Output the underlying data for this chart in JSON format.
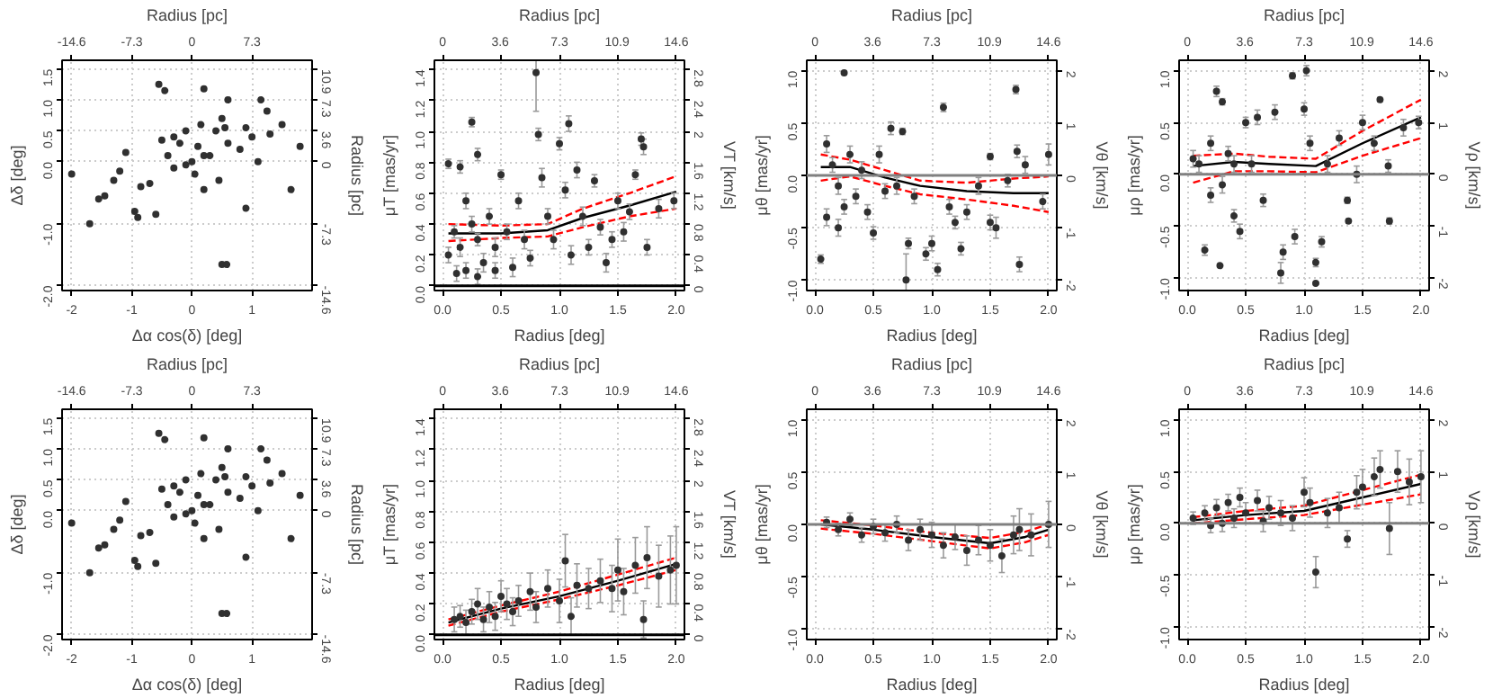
{
  "chart_data": [
    {
      "type": "scatter",
      "xlabel": "Δα cos(δ) [deg]",
      "ylabel": "Δδ [deg]",
      "x2label": "Radius [pc]",
      "y2label": "Radius [pc]",
      "xlim": [
        -2.16,
        2.0
      ],
      "ylim": [
        -2.08,
        1.64
      ],
      "x2lim": [
        -15.77,
        14.6
      ],
      "y2lim": [
        -15.18,
        11.97
      ],
      "xticks": [
        -2,
        -1,
        0,
        1
      ],
      "yticks": [
        {
          "value": -2,
          "label": "-2.0"
        },
        {
          "value": -1,
          "label": "-1.0"
        },
        {
          "value": 0,
          "label": "0.0"
        },
        0.5,
        {
          "value": 1,
          "label": "1.0"
        },
        1.5
      ],
      "x2ticks": [
        -14.6,
        -7.3,
        0,
        7.3
      ],
      "y2ticks": [
        -14.6,
        -7.3,
        0,
        3.6,
        7.3,
        10.9
      ],
      "grid": true,
      "series": [
        {
          "color": "#303030",
          "marker": "circle",
          "x": [
            -2.0,
            -1.7,
            -1.55,
            -1.45,
            -1.3,
            -1.2,
            -1.1,
            -0.95,
            -0.9,
            -0.85,
            -0.7,
            -0.6,
            -0.55,
            -0.45,
            -0.5,
            -0.4,
            -0.3,
            -0.3,
            -0.2,
            -0.1,
            -0.1,
            0.0,
            0.05,
            0.1,
            0.15,
            0.2,
            0.2,
            0.2,
            0.3,
            0.4,
            0.45,
            0.5,
            0.55,
            0.6,
            0.6,
            0.8,
            0.9,
            0.9,
            1.0,
            1.1,
            1.15,
            1.25,
            1.3,
            1.5,
            1.65,
            1.8,
            0.5,
            0.58
          ],
          "values": [
            -0.2,
            -1.0,
            -0.6,
            -0.55,
            -0.3,
            -0.15,
            0.15,
            -0.8,
            -0.9,
            -0.4,
            -0.35,
            -0.85,
            1.25,
            1.15,
            0.35,
            0.1,
            -0.1,
            0.4,
            0.3,
            0.5,
            -0.05,
            0.0,
            -0.2,
            0.25,
            0.6,
            -0.45,
            0.1,
            1.18,
            0.1,
            0.5,
            -0.3,
            0.7,
            0.55,
            0.3,
            1.0,
            0.2,
            -0.75,
            0.55,
            0.4,
            0.0,
            1.0,
            0.82,
            0.45,
            0.6,
            -0.45,
            0.25,
            -1.66,
            -1.66
          ]
        }
      ]
    },
    {
      "type": "scatter",
      "xlabel": "Radius [deg]",
      "ylabel": "μT [mas/yr]",
      "x2label": "Radius [pc]",
      "y2label": "VT [km/s]",
      "xlim": [
        -0.07,
        2.07
      ],
      "ylim": [
        -0.03,
        1.46
      ],
      "x2lim": [
        -0.51,
        15.11
      ],
      "y2lim": [
        -0.06,
        2.92
      ],
      "xticks": [
        {
          "value": 0,
          "label": "0.0"
        },
        0.5,
        {
          "value": 1,
          "label": "1.0"
        },
        1.5,
        {
          "value": 2,
          "label": "2.0"
        }
      ],
      "yticks": [
        {
          "value": 0,
          "label": "0.0"
        },
        0.2,
        0.4,
        0.6,
        0.8,
        {
          "value": 1,
          "label": "1.0"
        },
        1.2,
        1.4
      ],
      "x2ticks": [
        0,
        3.6,
        7.3,
        10.9,
        14.6
      ],
      "y2ticks": [
        0,
        0.4,
        0.8,
        1.2,
        1.6,
        2,
        2.4,
        2.8
      ],
      "grid": true,
      "ref_lines": [
        {
          "axis": "y",
          "value": 0,
          "color": "#000000"
        }
      ],
      "series": [
        {
          "type": "scatter",
          "color": "#303030",
          "marker": "circle",
          "x": [
            0.05,
            0.15,
            0.25,
            0.3,
            0.2,
            0.1,
            0.05,
            0.15,
            0.2,
            0.25,
            0.3,
            0.35,
            0.4,
            0.45,
            0.5,
            0.55,
            0.6,
            0.65,
            0.7,
            0.75,
            0.8,
            0.82,
            0.85,
            0.9,
            0.95,
            1.0,
            1.05,
            1.08,
            1.1,
            1.15,
            1.2,
            1.25,
            1.3,
            1.35,
            1.4,
            1.45,
            1.5,
            1.55,
            1.6,
            1.65,
            1.7,
            1.72,
            1.75,
            1.85,
            1.98,
            0.12,
            0.3,
            0.45
          ],
          "values": [
            0.79,
            0.77,
            1.06,
            0.85,
            0.55,
            0.35,
            0.2,
            0.25,
            0.1,
            0.4,
            0.3,
            0.15,
            0.45,
            0.25,
            0.72,
            0.35,
            0.12,
            0.55,
            0.3,
            0.18,
            1.38,
            0.98,
            0.7,
            0.45,
            0.3,
            0.92,
            0.62,
            1.05,
            0.2,
            0.75,
            0.45,
            0.25,
            0.68,
            0.38,
            0.15,
            0.3,
            0.55,
            0.35,
            0.48,
            0.72,
            0.95,
            0.9,
            0.25,
            0.5,
            0.55,
            0.08,
            0.06,
            0.1
          ],
          "errors": [
            0.03,
            0.04,
            0.03,
            0.04,
            0.05,
            0.04,
            0.05,
            0.06,
            0.05,
            0.05,
            0.04,
            0.06,
            0.05,
            0.06,
            0.03,
            0.05,
            0.06,
            0.05,
            0.06,
            0.05,
            0.25,
            0.04,
            0.06,
            0.05,
            0.06,
            0.04,
            0.05,
            0.05,
            0.06,
            0.05,
            0.06,
            0.05,
            0.04,
            0.05,
            0.06,
            0.05,
            0.05,
            0.06,
            0.05,
            0.03,
            0.04,
            0.05,
            0.05,
            0.06,
            0.05,
            0.05,
            0.05,
            0.05
          ]
        },
        {
          "type": "line",
          "color": "#000000",
          "line_style": "solid",
          "x": [
            0.05,
            0.5,
            0.9,
            1.2,
            1.6,
            2.0
          ],
          "values": [
            0.34,
            0.34,
            0.36,
            0.44,
            0.52,
            0.61
          ]
        },
        {
          "type": "line",
          "color": "#ff0000",
          "line_style": "dashed",
          "x": [
            0.05,
            0.5,
            0.9,
            1.2,
            1.6,
            2.0
          ],
          "values": [
            0.4,
            0.39,
            0.4,
            0.5,
            0.6,
            0.71
          ]
        },
        {
          "type": "line",
          "color": "#ff0000",
          "line_style": "dashed",
          "x": [
            0.05,
            0.5,
            0.9,
            1.2,
            1.6,
            2.0
          ],
          "values": [
            0.29,
            0.31,
            0.32,
            0.38,
            0.45,
            0.5
          ]
        }
      ]
    },
    {
      "type": "scatter",
      "xlabel": "Radius [deg]",
      "ylabel": "μθ [mas/yr]",
      "x2label": "Radius [pc]",
      "y2label": "Vθ [km/s]",
      "xlim": [
        -0.07,
        2.07
      ],
      "ylim": [
        -1.1,
        1.1
      ],
      "x2lim": [
        -0.51,
        15.11
      ],
      "y2lim": [
        -2.2,
        2.2
      ],
      "xticks": [
        {
          "value": 0,
          "label": "0.0"
        },
        0.5,
        {
          "value": 1,
          "label": "1.0"
        },
        1.5,
        {
          "value": 2,
          "label": "2.0"
        }
      ],
      "yticks": [
        {
          "value": -1,
          "label": "-1.0"
        },
        -0.5,
        {
          "value": 0,
          "label": "0.0"
        },
        0.5,
        {
          "value": 1,
          "label": "1.0"
        }
      ],
      "x2ticks": [
        0,
        3.6,
        7.3,
        10.9,
        14.6
      ],
      "y2ticks": [
        -2,
        -1,
        0,
        1,
        2
      ],
      "grid": true,
      "ref_lines": [
        {
          "axis": "y",
          "value": 0,
          "color": "#808080"
        }
      ],
      "series": [
        {
          "type": "scatter",
          "color": "#303030",
          "marker": "circle",
          "x": [
            0.05,
            0.25,
            0.1,
            0.15,
            0.2,
            0.25,
            0.3,
            0.35,
            0.4,
            0.45,
            0.5,
            0.55,
            0.6,
            0.65,
            0.7,
            0.75,
            0.78,
            0.8,
            0.85,
            0.95,
            1.0,
            1.05,
            1.1,
            1.15,
            1.2,
            1.25,
            1.3,
            1.4,
            1.5,
            1.5,
            1.55,
            1.65,
            1.72,
            1.73,
            1.75,
            1.8,
            1.95,
            2.0,
            0.1,
            0.2
          ],
          "values": [
            -0.8,
            0.98,
            0.3,
            0.1,
            -0.1,
            -0.3,
            0.2,
            -0.2,
            0.05,
            -0.35,
            -0.55,
            0.2,
            -0.15,
            0.45,
            -0.1,
            0.42,
            -1.0,
            -0.65,
            -0.2,
            -0.75,
            -0.65,
            -0.9,
            0.65,
            -0.3,
            -0.45,
            -0.7,
            -0.35,
            -0.1,
            0.18,
            -0.45,
            -0.5,
            -0.05,
            0.82,
            0.23,
            -0.85,
            0.1,
            -0.25,
            0.2,
            -0.4,
            -0.5
          ],
          "errors": [
            0.04,
            0.01,
            0.08,
            0.07,
            0.08,
            0.07,
            0.08,
            0.07,
            0.08,
            0.07,
            0.06,
            0.08,
            0.07,
            0.06,
            0.08,
            0.03,
            0.25,
            0.05,
            0.07,
            0.06,
            0.07,
            0.06,
            0.04,
            0.07,
            0.06,
            0.06,
            0.07,
            0.08,
            0.03,
            0.07,
            0.1,
            0.06,
            0.04,
            0.06,
            0.07,
            0.08,
            0.07,
            0.1,
            0.08,
            0.08
          ]
        },
        {
          "type": "line",
          "color": "#000000",
          "line_style": "solid",
          "x": [
            0.05,
            0.3,
            0.6,
            0.9,
            1.3,
            1.7,
            2.0
          ],
          "values": [
            0.08,
            0.08,
            -0.02,
            -0.1,
            -0.15,
            -0.17,
            -0.17
          ]
        },
        {
          "type": "line",
          "color": "#ff0000",
          "line_style": "dashed",
          "x": [
            0.05,
            0.3,
            0.6,
            0.9,
            1.3,
            1.7,
            2.0
          ],
          "values": [
            0.2,
            0.15,
            0.05,
            -0.05,
            -0.07,
            -0.03,
            -0.01
          ]
        },
        {
          "type": "line",
          "color": "#ff0000",
          "line_style": "dashed",
          "x": [
            0.05,
            0.3,
            0.6,
            0.9,
            1.3,
            1.7,
            2.0
          ],
          "values": [
            -0.05,
            -0.01,
            -0.1,
            -0.18,
            -0.23,
            -0.29,
            -0.35
          ]
        }
      ]
    },
    {
      "type": "scatter",
      "xlabel": "Radius [deg]",
      "ylabel": "μρ [mas/yr]",
      "x2label": "Radius [pc]",
      "y2label": "Vρ [km/s]",
      "xlim": [
        -0.07,
        2.07
      ],
      "ylim": [
        -1.12,
        1.1
      ],
      "x2lim": [
        -0.51,
        15.11
      ],
      "y2lim": [
        -2.24,
        2.2
      ],
      "xticks": [
        {
          "value": 0,
          "label": "0.0"
        },
        0.5,
        {
          "value": 1,
          "label": "1.0"
        },
        1.5,
        {
          "value": 2,
          "label": "2.0"
        }
      ],
      "yticks": [
        {
          "value": -1,
          "label": "-1.0"
        },
        -0.5,
        {
          "value": 0,
          "label": "0.0"
        },
        0.5,
        {
          "value": 1,
          "label": "1.0"
        }
      ],
      "x2ticks": [
        0,
        3.6,
        7.3,
        10.9,
        14.6
      ],
      "y2ticks": [
        -2,
        -1,
        0,
        1,
        2
      ],
      "grid": true,
      "ref_lines": [
        {
          "axis": "y",
          "value": 0,
          "color": "#808080"
        }
      ],
      "series": [
        {
          "type": "scatter",
          "color": "#303030",
          "marker": "circle",
          "x": [
            0.15,
            0.28,
            0.25,
            0.3,
            0.1,
            0.2,
            0.3,
            0.35,
            0.4,
            0.45,
            0.5,
            0.55,
            0.6,
            0.65,
            0.75,
            0.8,
            0.82,
            0.9,
            0.92,
            1.0,
            1.02,
            1.05,
            1.1,
            1.1,
            1.15,
            1.2,
            1.3,
            1.37,
            1.38,
            1.45,
            1.5,
            1.6,
            1.65,
            1.72,
            1.73,
            1.85,
            1.98,
            0.05,
            0.2,
            0.4
          ],
          "values": [
            -0.73,
            -0.88,
            0.8,
            0.7,
            0.1,
            0.3,
            -0.1,
            0.2,
            -0.4,
            -0.55,
            0.5,
            0.1,
            0.55,
            -0.25,
            0.6,
            -0.95,
            -0.75,
            0.95,
            -0.6,
            0.63,
            1.0,
            0.3,
            -0.85,
            -1.05,
            -0.65,
            0.1,
            0.35,
            -0.25,
            -0.45,
            0.0,
            0.5,
            0.3,
            0.72,
            0.08,
            -0.45,
            0.45,
            0.5,
            0.15,
            -0.2,
            0.1
          ],
          "errors": [
            0.05,
            0.01,
            0.05,
            0.03,
            0.08,
            0.07,
            0.08,
            0.07,
            0.06,
            0.07,
            0.05,
            0.08,
            0.07,
            0.06,
            0.07,
            0.1,
            0.07,
            0.03,
            0.07,
            0.06,
            0.05,
            0.07,
            0.04,
            0.01,
            0.05,
            0.08,
            0.07,
            0.03,
            0.02,
            0.08,
            0.07,
            0.07,
            0.02,
            0.06,
            0.03,
            0.08,
            0.06,
            0.08,
            0.07,
            0.08
          ]
        },
        {
          "type": "line",
          "color": "#000000",
          "line_style": "solid",
          "x": [
            0.05,
            0.4,
            0.7,
            1.1,
            1.5,
            2.0
          ],
          "values": [
            0.08,
            0.12,
            0.1,
            0.08,
            0.3,
            0.55
          ]
        },
        {
          "type": "line",
          "color": "#ff0000",
          "line_style": "dashed",
          "x": [
            0.05,
            0.4,
            0.7,
            1.1,
            1.5,
            2.0
          ],
          "values": [
            0.18,
            0.2,
            0.17,
            0.15,
            0.42,
            0.72
          ]
        },
        {
          "type": "line",
          "color": "#ff0000",
          "line_style": "dashed",
          "x": [
            0.05,
            0.4,
            0.7,
            1.1,
            1.5,
            2.0
          ],
          "values": [
            -0.08,
            0.03,
            0.03,
            0.02,
            0.18,
            0.35
          ]
        }
      ]
    },
    {
      "type": "scatter",
      "xlabel": "Δα cos(δ) [deg]",
      "ylabel": "Δδ [deg]",
      "x2label": "Radius [pc]",
      "y2label": "Radius [pc]",
      "xlim": [
        -2.16,
        2.0
      ],
      "ylim": [
        -2.08,
        1.64
      ],
      "x2lim": [
        -15.77,
        14.6
      ],
      "y2lim": [
        -15.18,
        11.97
      ],
      "xticks": [
        -2,
        -1,
        0,
        1
      ],
      "yticks": [
        {
          "value": -2,
          "label": "-2.0"
        },
        {
          "value": -1,
          "label": "-1.0"
        },
        {
          "value": 0,
          "label": "0.0"
        },
        0.5,
        {
          "value": 1,
          "label": "1.0"
        },
        1.5
      ],
      "x2ticks": [
        -14.6,
        -7.3,
        0,
        7.3
      ],
      "y2ticks": [
        -14.6,
        -7.3,
        0,
        3.6,
        7.3,
        10.9
      ],
      "grid": true,
      "series": [
        {
          "color": "#303030",
          "marker": "circle",
          "x": [
            -2.0,
            -1.7,
            -1.55,
            -1.45,
            -1.3,
            -1.2,
            -1.1,
            -0.95,
            -0.9,
            -0.85,
            -0.7,
            -0.6,
            -0.55,
            -0.45,
            -0.5,
            -0.4,
            -0.3,
            -0.3,
            -0.2,
            -0.1,
            -0.1,
            0.0,
            0.05,
            0.1,
            0.15,
            0.2,
            0.2,
            0.2,
            0.3,
            0.4,
            0.45,
            0.5,
            0.55,
            0.6,
            0.6,
            0.8,
            0.9,
            0.9,
            1.0,
            1.1,
            1.15,
            1.25,
            1.3,
            1.5,
            1.65,
            1.8,
            0.5,
            0.58
          ],
          "values": [
            -0.2,
            -1.0,
            -0.6,
            -0.55,
            -0.3,
            -0.15,
            0.15,
            -0.8,
            -0.9,
            -0.4,
            -0.35,
            -0.85,
            1.25,
            1.15,
            0.35,
            0.1,
            -0.1,
            0.4,
            0.3,
            0.5,
            -0.05,
            0.0,
            -0.2,
            0.25,
            0.6,
            -0.45,
            0.1,
            1.18,
            0.1,
            0.5,
            -0.3,
            0.7,
            0.55,
            0.3,
            1.0,
            0.2,
            -0.75,
            0.55,
            0.4,
            0.0,
            1.0,
            0.82,
            0.45,
            0.6,
            -0.45,
            0.25,
            -1.66,
            -1.66
          ]
        }
      ]
    },
    {
      "type": "scatter",
      "xlabel": "Radius [deg]",
      "ylabel": "μT [mas/yr]",
      "x2label": "Radius [pc]",
      "y2label": "VT [km/s]",
      "xlim": [
        -0.07,
        2.07
      ],
      "ylim": [
        -0.03,
        1.46
      ],
      "x2lim": [
        -0.51,
        15.11
      ],
      "y2lim": [
        -0.06,
        2.92
      ],
      "xticks": [
        {
          "value": 0,
          "label": "0.0"
        },
        0.5,
        {
          "value": 1,
          "label": "1.0"
        },
        1.5,
        {
          "value": 2,
          "label": "2.0"
        }
      ],
      "yticks": [
        {
          "value": 0,
          "label": "0.0"
        },
        0.2,
        0.4,
        0.6,
        0.8,
        {
          "value": 1,
          "label": "1.0"
        },
        1.2,
        1.4
      ],
      "x2ticks": [
        0,
        3.6,
        7.3,
        10.9,
        14.6
      ],
      "y2ticks": [
        0,
        0.4,
        0.8,
        1.2,
        1.6,
        2,
        2.4,
        2.8
      ],
      "grid": true,
      "ref_lines": [
        {
          "axis": "y",
          "value": 0,
          "color": "#000000"
        }
      ],
      "series": [
        {
          "type": "scatter",
          "color": "#303030",
          "marker": "circle",
          "x": [
            0.1,
            0.15,
            0.2,
            0.25,
            0.3,
            0.35,
            0.4,
            0.45,
            0.5,
            0.55,
            0.6,
            0.65,
            0.75,
            0.8,
            0.9,
            1.0,
            1.05,
            1.1,
            1.15,
            1.25,
            1.35,
            1.45,
            1.5,
            1.55,
            1.65,
            1.72,
            1.75,
            1.85,
            1.95,
            2.0
          ],
          "values": [
            0.1,
            0.12,
            0.08,
            0.15,
            0.2,
            0.1,
            0.18,
            0.12,
            0.25,
            0.2,
            0.15,
            0.22,
            0.28,
            0.18,
            0.3,
            0.22,
            0.48,
            0.12,
            0.32,
            0.3,
            0.35,
            0.3,
            0.42,
            0.28,
            0.45,
            0.1,
            0.5,
            0.38,
            0.42,
            0.45
          ],
          "errors": [
            0.08,
            0.07,
            0.08,
            0.08,
            0.1,
            0.08,
            0.1,
            0.09,
            0.1,
            0.1,
            0.09,
            0.1,
            0.12,
            0.1,
            0.12,
            0.14,
            0.17,
            0.12,
            0.14,
            0.13,
            0.14,
            0.15,
            0.2,
            0.15,
            0.18,
            0.12,
            0.2,
            0.2,
            0.22,
            0.25
          ]
        },
        {
          "type": "line",
          "color": "#000000",
          "line_style": "solid",
          "x": [
            0.05,
            0.5,
            1.0,
            1.5,
            2.0
          ],
          "values": [
            0.08,
            0.17,
            0.25,
            0.35,
            0.46
          ]
        },
        {
          "type": "line",
          "color": "#ff0000",
          "line_style": "dashed",
          "x": [
            0.05,
            0.5,
            1.0,
            1.5,
            2.0
          ],
          "values": [
            0.1,
            0.19,
            0.28,
            0.39,
            0.5
          ]
        },
        {
          "type": "line",
          "color": "#ff0000",
          "line_style": "dashed",
          "x": [
            0.05,
            0.5,
            1.0,
            1.5,
            2.0
          ],
          "values": [
            0.06,
            0.15,
            0.23,
            0.32,
            0.42
          ]
        }
      ]
    },
    {
      "type": "scatter",
      "xlabel": "Radius [deg]",
      "ylabel": "μθ [mas/yr]",
      "x2label": "Radius [pc]",
      "y2label": "Vθ [km/s]",
      "xlim": [
        -0.07,
        2.07
      ],
      "ylim": [
        -1.1,
        1.1
      ],
      "x2lim": [
        -0.51,
        15.11
      ],
      "y2lim": [
        -2.2,
        2.2
      ],
      "xticks": [
        {
          "value": 0,
          "label": "0.0"
        },
        0.5,
        {
          "value": 1,
          "label": "1.0"
        },
        1.5,
        {
          "value": 2,
          "label": "2.0"
        }
      ],
      "yticks": [
        {
          "value": -1,
          "label": "-1.0"
        },
        -0.5,
        {
          "value": 0,
          "label": "0.0"
        },
        0.5,
        {
          "value": 1,
          "label": "1.0"
        }
      ],
      "x2ticks": [
        0,
        3.6,
        7.3,
        10.9,
        14.6
      ],
      "y2ticks": [
        -2,
        -1,
        0,
        1,
        2
      ],
      "grid": true,
      "ref_lines": [
        {
          "axis": "y",
          "value": 0,
          "color": "#808080"
        }
      ],
      "series": [
        {
          "type": "scatter",
          "color": "#303030",
          "marker": "circle",
          "x": [
            0.1,
            0.2,
            0.3,
            0.4,
            0.5,
            0.6,
            0.7,
            0.8,
            0.9,
            1.0,
            1.1,
            1.2,
            1.3,
            1.4,
            1.5,
            1.6,
            1.7,
            1.75,
            1.85,
            2.0
          ],
          "values": [
            0.02,
            -0.05,
            0.05,
            -0.1,
            -0.02,
            -0.08,
            0.0,
            -0.15,
            -0.05,
            -0.1,
            -0.2,
            -0.12,
            -0.25,
            -0.15,
            -0.2,
            -0.3,
            -0.1,
            -0.05,
            -0.1,
            0.0
          ],
          "errors": [
            0.05,
            0.06,
            0.06,
            0.07,
            0.07,
            0.08,
            0.08,
            0.1,
            0.1,
            0.12,
            0.12,
            0.12,
            0.14,
            0.14,
            0.15,
            0.16,
            0.18,
            0.2,
            0.2,
            0.22
          ]
        },
        {
          "type": "line",
          "color": "#000000",
          "line_style": "solid",
          "x": [
            0.05,
            0.5,
            1.0,
            1.5,
            1.8,
            2.0
          ],
          "values": [
            0.0,
            -0.05,
            -0.12,
            -0.18,
            -0.12,
            -0.05
          ]
        },
        {
          "type": "line",
          "color": "#ff0000",
          "line_style": "dashed",
          "x": [
            0.05,
            0.5,
            1.0,
            1.5,
            1.8,
            2.0
          ],
          "values": [
            0.04,
            -0.01,
            -0.08,
            -0.13,
            -0.07,
            0.0
          ]
        },
        {
          "type": "line",
          "color": "#ff0000",
          "line_style": "dashed",
          "x": [
            0.05,
            0.5,
            1.0,
            1.5,
            1.8,
            2.0
          ],
          "values": [
            -0.04,
            -0.09,
            -0.16,
            -0.23,
            -0.17,
            -0.1
          ]
        }
      ]
    },
    {
      "type": "scatter",
      "xlabel": "Radius [deg]",
      "ylabel": "μρ [mas/yr]",
      "x2label": "Radius [pc]",
      "y2label": "Vρ [km/s]",
      "xlim": [
        -0.07,
        2.07
      ],
      "ylim": [
        -1.12,
        1.1
      ],
      "x2lim": [
        -0.51,
        15.11
      ],
      "y2lim": [
        -2.24,
        2.2
      ],
      "xticks": [
        {
          "value": 0,
          "label": "0.0"
        },
        0.5,
        {
          "value": 1,
          "label": "1.0"
        },
        1.5,
        {
          "value": 2,
          "label": "2.0"
        }
      ],
      "yticks": [
        {
          "value": -1,
          "label": "-1.0"
        },
        -0.5,
        {
          "value": 0,
          "label": "0.0"
        },
        0.5,
        {
          "value": 1,
          "label": "1.0"
        }
      ],
      "x2ticks": [
        0,
        3.6,
        7.3,
        10.9,
        14.6
      ],
      "y2ticks": [
        -2,
        -1,
        0,
        1,
        2
      ],
      "grid": true,
      "ref_lines": [
        {
          "axis": "y",
          "value": 0,
          "color": "#808080"
        }
      ],
      "series": [
        {
          "type": "scatter",
          "color": "#303030",
          "marker": "circle",
          "x": [
            0.05,
            0.15,
            0.2,
            0.25,
            0.3,
            0.35,
            0.4,
            0.45,
            0.5,
            0.6,
            0.65,
            0.7,
            0.8,
            0.9,
            1.0,
            1.05,
            1.1,
            1.2,
            1.3,
            1.37,
            1.45,
            1.5,
            1.6,
            1.65,
            1.73,
            1.8,
            1.9,
            2.0
          ],
          "values": [
            0.05,
            0.1,
            -0.02,
            0.15,
            0.0,
            0.2,
            0.05,
            0.25,
            0.1,
            0.22,
            0.02,
            0.15,
            0.1,
            0.05,
            0.3,
            0.2,
            -0.47,
            0.1,
            0.15,
            -0.15,
            0.3,
            0.35,
            0.45,
            0.52,
            -0.05,
            0.5,
            0.4,
            0.45
          ],
          "errors": [
            0.06,
            0.07,
            0.07,
            0.08,
            0.08,
            0.08,
            0.09,
            0.09,
            0.1,
            0.1,
            0.1,
            0.11,
            0.12,
            0.12,
            0.14,
            0.14,
            0.15,
            0.14,
            0.15,
            0.08,
            0.16,
            0.17,
            0.18,
            0.18,
            0.25,
            0.2,
            0.22,
            0.25
          ]
        },
        {
          "type": "line",
          "color": "#000000",
          "line_style": "solid",
          "x": [
            0.05,
            0.5,
            1.0,
            1.5,
            2.0
          ],
          "values": [
            0.03,
            0.08,
            0.12,
            0.25,
            0.38
          ]
        },
        {
          "type": "line",
          "color": "#ff0000",
          "line_style": "dashed",
          "x": [
            0.05,
            0.5,
            1.0,
            1.5,
            2.0
          ],
          "values": [
            0.06,
            0.12,
            0.17,
            0.32,
            0.47
          ]
        },
        {
          "type": "line",
          "color": "#ff0000",
          "line_style": "dashed",
          "x": [
            0.05,
            0.5,
            1.0,
            1.5,
            2.0
          ],
          "values": [
            0.0,
            0.04,
            0.08,
            0.18,
            0.28
          ]
        }
      ]
    }
  ]
}
